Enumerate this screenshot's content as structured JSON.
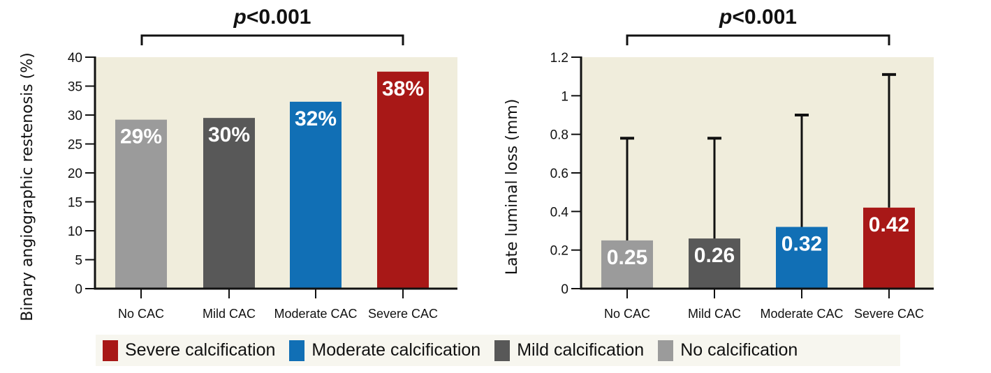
{
  "colors": {
    "plot_background": "#f0eddc",
    "no_cac": "#9b9b9b",
    "mild_cac": "#585858",
    "moderate_cac": "#116fb5",
    "severe_cac": "#a81817",
    "axis": "#111111",
    "bar_label": "#ffffff"
  },
  "chart_data": [
    {
      "type": "bar",
      "title": "",
      "annotation": "p<0.001",
      "annotation_p": "p",
      "annotation_rest": "<0.001",
      "categories": [
        "No CAC",
        "Mild CAC",
        "Moderate CAC",
        "Severe CAC"
      ],
      "values": [
        29.2,
        29.5,
        32.3,
        37.5
      ],
      "data_labels": [
        "29%",
        "30%",
        "32%",
        "38%"
      ],
      "xlabel": "",
      "ylabel": "Binary angiographic restenosis (%)",
      "ylim": [
        0,
        40
      ],
      "yticks": [
        0,
        5,
        10,
        15,
        20,
        25,
        30,
        35,
        40
      ],
      "ytick_labels": [
        "0",
        "5",
        "10",
        "15",
        "20",
        "25",
        "30",
        "35",
        "40"
      ],
      "grid": false,
      "error_bars": null
    },
    {
      "type": "bar",
      "title": "",
      "annotation": "p<0.001",
      "annotation_p": "p",
      "annotation_rest": "<0.001",
      "categories": [
        "No CAC",
        "Mild CAC",
        "Moderate CAC",
        "Severe CAC"
      ],
      "values": [
        0.25,
        0.26,
        0.32,
        0.42
      ],
      "data_labels": [
        "0.25",
        "0.26",
        "0.32",
        "0.42"
      ],
      "error_upper": [
        0.78,
        0.78,
        0.9,
        1.11
      ],
      "xlabel": "",
      "ylabel": "Late luminal loss (mm)",
      "ylim": [
        0,
        1.2
      ],
      "yticks": [
        0,
        0.2,
        0.4,
        0.6,
        0.8,
        1.0,
        1.2
      ],
      "ytick_labels": [
        "0",
        "0.2",
        "0.4",
        "0.6",
        "0.8",
        "1",
        "1.2"
      ],
      "grid": false
    }
  ],
  "legend": {
    "placement": "bottom",
    "items": [
      {
        "label": "Severe calcification",
        "color_key": "severe_cac"
      },
      {
        "label": "Moderate calcification",
        "color_key": "moderate_cac"
      },
      {
        "label": "Mild calcification",
        "color_key": "mild_cac"
      },
      {
        "label": "No calcification",
        "color_key": "no_cac"
      }
    ]
  }
}
